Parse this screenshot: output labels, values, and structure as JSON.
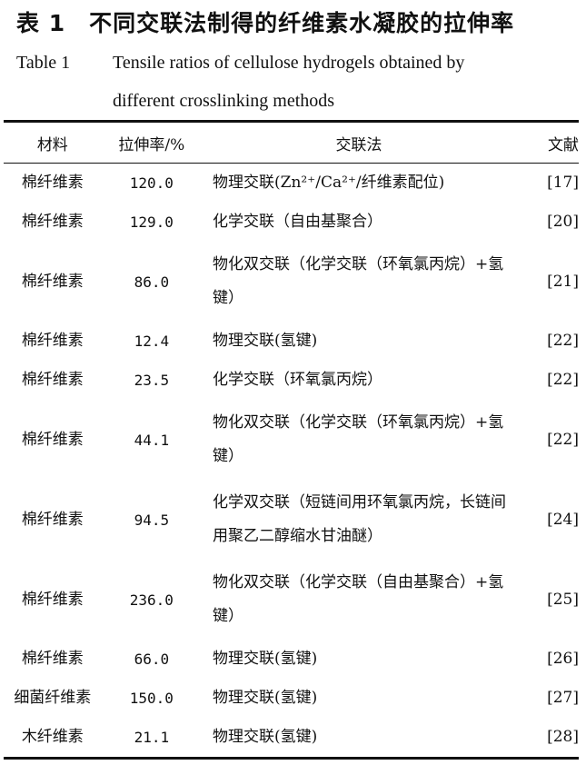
{
  "caption": {
    "cn": "表 1　不同交联法制得的纤维素水凝胶的拉伸率",
    "en_label": "Table 1",
    "en_line1": "Tensile ratios of cellulose hydrogels obtained by",
    "en_line2": "different crosslinking methods"
  },
  "table": {
    "headers": [
      "材料",
      "拉伸率/%",
      "交联法",
      "文献"
    ],
    "rows": [
      {
        "material": "棉纤维素",
        "tensile": "120.0",
        "method": "物理交联(Zn²⁺/Ca²⁺/纤维素配位)",
        "ref": "[17]"
      },
      {
        "material": "棉纤维素",
        "tensile": "129.0",
        "method": "化学交联（自由基聚合）",
        "ref": "[20]"
      },
      {
        "material": "棉纤维素",
        "tensile": "86.0",
        "method": "物化双交联（化学交联（环氧氯丙烷）+氢键）",
        "ref": "[21]"
      },
      {
        "material": "棉纤维素",
        "tensile": "12.4",
        "method": "物理交联(氢键)",
        "ref": "[22]"
      },
      {
        "material": "棉纤维素",
        "tensile": "23.5",
        "method": "化学交联（环氧氯丙烷）",
        "ref": "[22]"
      },
      {
        "material": "棉纤维素",
        "tensile": "44.1",
        "method": "物化双交联（化学交联（环氧氯丙烷）+氢键）",
        "ref": "[22]"
      },
      {
        "material": "棉纤维素",
        "tensile": "94.5",
        "method": "化学双交联（短链间用环氧氯丙烷，长链间用聚乙二醇缩水甘油醚）",
        "ref": "[24]"
      },
      {
        "material": "棉纤维素",
        "tensile": "236.0",
        "method": "物化双交联（化学交联（自由基聚合）+氢键）",
        "ref": "[25]"
      },
      {
        "material": "棉纤维素",
        "tensile": "66.0",
        "method": "物理交联(氢键)",
        "ref": "[26]"
      },
      {
        "material": "细菌纤维素",
        "tensile": "150.0",
        "method": "物理交联(氢键)",
        "ref": "[27]"
      },
      {
        "material": "木纤维素",
        "tensile": "21.1",
        "method": "物理交联(氢键)",
        "ref": "[28]"
      }
    ]
  }
}
